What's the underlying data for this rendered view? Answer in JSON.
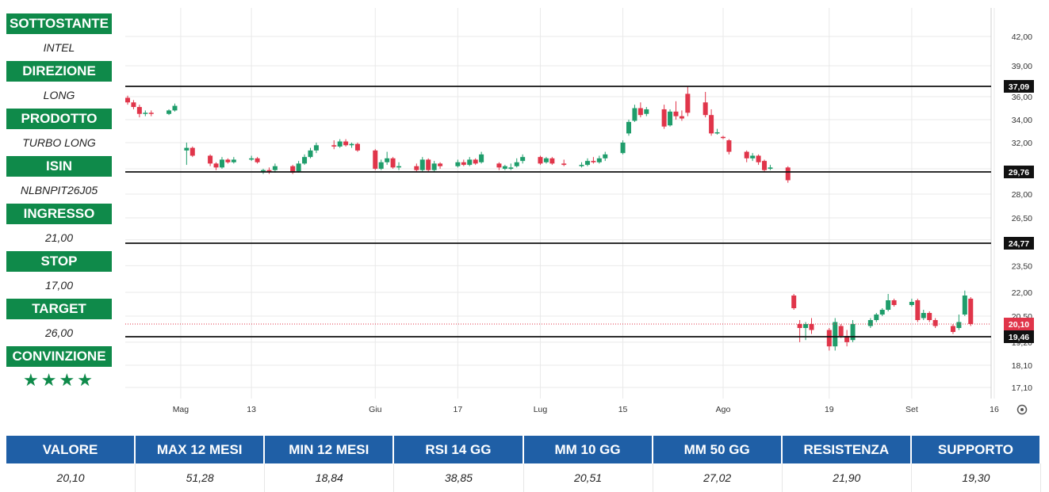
{
  "sidebar": {
    "items": [
      {
        "label": "SOTTOSTANTE",
        "value": "INTEL"
      },
      {
        "label": "DIREZIONE",
        "value": "LONG"
      },
      {
        "label": "PRODOTTO",
        "value": "TURBO LONG"
      },
      {
        "label": "ISIN",
        "value": "NLBNPIT26J05"
      },
      {
        "label": "INGRESSO",
        "value": "21,00"
      },
      {
        "label": "STOP",
        "value": "17,00"
      },
      {
        "label": "TARGET",
        "value": "26,00"
      }
    ],
    "conviction_label": "CONVINZIONE",
    "conviction_stars": "★★★★"
  },
  "chart_data": {
    "type": "candlestick",
    "y_ticks": [
      {
        "label": "42,00",
        "value": 42.0
      },
      {
        "label": "39,00",
        "value": 39.0
      },
      {
        "label": "36,00",
        "value": 36.0
      },
      {
        "label": "34,00",
        "value": 34.0
      },
      {
        "label": "32,00",
        "value": 32.0
      },
      {
        "label": "30,00",
        "value": 30.0
      },
      {
        "label": "28,00",
        "value": 28.0
      },
      {
        "label": "26,50",
        "value": 26.5
      },
      {
        "label": "25,00",
        "value": 25.0
      },
      {
        "label": "23,50",
        "value": 23.5
      },
      {
        "label": "22,00",
        "value": 22.0
      },
      {
        "label": "20,50",
        "value": 20.5
      },
      {
        "label": "19,20",
        "value": 19.2
      },
      {
        "label": "18,10",
        "value": 18.1
      },
      {
        "label": "17,10",
        "value": 17.1
      }
    ],
    "x_ticks": [
      {
        "label": "Mag",
        "date": "2024-05-01"
      },
      {
        "label": "13",
        "date": "2024-05-13"
      },
      {
        "label": "Giu",
        "date": "2024-06-03"
      },
      {
        "label": "17",
        "date": "2024-06-17"
      },
      {
        "label": "Lug",
        "date": "2024-07-01"
      },
      {
        "label": "15",
        "date": "2024-07-15"
      },
      {
        "label": "Ago",
        "date": "2024-08-01"
      },
      {
        "label": "19",
        "date": "2024-08-19"
      },
      {
        "label": "Set",
        "date": "2024-09-02"
      },
      {
        "label": "16",
        "date": "2024-09-16"
      }
    ],
    "levels": [
      {
        "label": "37,09",
        "value": 37.09
      },
      {
        "label": "29,76",
        "value": 29.76
      },
      {
        "label": "24,77",
        "value": 24.77
      },
      {
        "label": "19,46",
        "value": 19.46
      }
    ],
    "last_price": {
      "label": "20,10",
      "value": 20.1
    },
    "candles": [
      {
        "date": "2024-04-22",
        "o": 35.9,
        "h": 36.1,
        "l": 35.3,
        "c": 35.5
      },
      {
        "date": "2024-04-23",
        "o": 35.5,
        "h": 35.7,
        "l": 34.9,
        "c": 35.1
      },
      {
        "date": "2024-04-24",
        "o": 35.1,
        "h": 35.3,
        "l": 34.2,
        "c": 34.5
      },
      {
        "date": "2024-04-25",
        "o": 34.5,
        "h": 34.8,
        "l": 34.3,
        "c": 34.6
      },
      {
        "date": "2024-04-26",
        "o": 34.6,
        "h": 34.8,
        "l": 34.3,
        "c": 34.5
      },
      {
        "date": "2024-04-29",
        "o": 34.5,
        "h": 34.9,
        "l": 34.4,
        "c": 34.8
      },
      {
        "date": "2024-04-30",
        "o": 34.8,
        "h": 35.4,
        "l": 34.7,
        "c": 35.2
      },
      {
        "date": "2024-05-02",
        "o": 31.4,
        "h": 32.0,
        "l": 30.3,
        "c": 31.6
      },
      {
        "date": "2024-05-03",
        "o": 31.6,
        "h": 31.7,
        "l": 30.9,
        "c": 31.0
      },
      {
        "date": "2024-05-06",
        "o": 31.0,
        "h": 31.1,
        "l": 30.2,
        "c": 30.4
      },
      {
        "date": "2024-05-07",
        "o": 30.4,
        "h": 30.5,
        "l": 29.9,
        "c": 30.1
      },
      {
        "date": "2024-05-08",
        "o": 30.1,
        "h": 30.9,
        "l": 30.0,
        "c": 30.7
      },
      {
        "date": "2024-05-09",
        "o": 30.7,
        "h": 30.8,
        "l": 30.4,
        "c": 30.5
      },
      {
        "date": "2024-05-10",
        "o": 30.5,
        "h": 30.9,
        "l": 30.4,
        "c": 30.7
      },
      {
        "date": "2024-05-13",
        "o": 30.7,
        "h": 31.0,
        "l": 30.6,
        "c": 30.8
      },
      {
        "date": "2024-05-14",
        "o": 30.8,
        "h": 30.9,
        "l": 30.4,
        "c": 30.5
      },
      {
        "date": "2024-05-15",
        "o": 29.8,
        "h": 30.0,
        "l": 29.6,
        "c": 29.9
      },
      {
        "date": "2024-05-16",
        "o": 29.9,
        "h": 30.1,
        "l": 29.6,
        "c": 29.8
      },
      {
        "date": "2024-05-17",
        "o": 29.9,
        "h": 30.4,
        "l": 29.7,
        "c": 30.2
      },
      {
        "date": "2024-05-20",
        "o": 30.2,
        "h": 30.3,
        "l": 29.6,
        "c": 29.7
      },
      {
        "date": "2024-05-21",
        "o": 29.8,
        "h": 30.6,
        "l": 29.7,
        "c": 30.4
      },
      {
        "date": "2024-05-22",
        "o": 30.4,
        "h": 31.1,
        "l": 30.3,
        "c": 30.9
      },
      {
        "date": "2024-05-23",
        "o": 30.9,
        "h": 31.6,
        "l": 30.8,
        "c": 31.4
      },
      {
        "date": "2024-05-24",
        "o": 31.4,
        "h": 32.0,
        "l": 31.2,
        "c": 31.8
      },
      {
        "date": "2024-05-27",
        "o": 31.8,
        "h": 32.2,
        "l": 31.5,
        "c": 31.7
      },
      {
        "date": "2024-05-28",
        "o": 31.7,
        "h": 32.3,
        "l": 31.6,
        "c": 32.1
      },
      {
        "date": "2024-05-29",
        "o": 32.1,
        "h": 32.3,
        "l": 31.7,
        "c": 31.8
      },
      {
        "date": "2024-05-30",
        "o": 31.8,
        "h": 32.0,
        "l": 31.6,
        "c": 31.9
      },
      {
        "date": "2024-05-31",
        "o": 31.9,
        "h": 32.0,
        "l": 31.3,
        "c": 31.4
      },
      {
        "date": "2024-06-03",
        "o": 31.4,
        "h": 31.5,
        "l": 29.9,
        "c": 30.0
      },
      {
        "date": "2024-06-04",
        "o": 30.0,
        "h": 30.7,
        "l": 29.9,
        "c": 30.5
      },
      {
        "date": "2024-06-05",
        "o": 30.5,
        "h": 31.3,
        "l": 30.3,
        "c": 30.8
      },
      {
        "date": "2024-06-06",
        "o": 30.8,
        "h": 30.9,
        "l": 30.0,
        "c": 30.1
      },
      {
        "date": "2024-06-07",
        "o": 30.1,
        "h": 30.5,
        "l": 29.9,
        "c": 30.2
      },
      {
        "date": "2024-06-10",
        "o": 30.2,
        "h": 30.4,
        "l": 29.8,
        "c": 29.9
      },
      {
        "date": "2024-06-11",
        "o": 29.9,
        "h": 30.9,
        "l": 29.8,
        "c": 30.7
      },
      {
        "date": "2024-06-12",
        "o": 30.7,
        "h": 30.8,
        "l": 29.8,
        "c": 29.9
      },
      {
        "date": "2024-06-13",
        "o": 29.9,
        "h": 30.6,
        "l": 29.8,
        "c": 30.4
      },
      {
        "date": "2024-06-14",
        "o": 30.4,
        "h": 30.5,
        "l": 30.0,
        "c": 30.2
      },
      {
        "date": "2024-06-17",
        "o": 30.2,
        "h": 30.7,
        "l": 30.1,
        "c": 30.5
      },
      {
        "date": "2024-06-18",
        "o": 30.5,
        "h": 30.7,
        "l": 30.2,
        "c": 30.3
      },
      {
        "date": "2024-06-19",
        "o": 30.3,
        "h": 30.9,
        "l": 30.2,
        "c": 30.7
      },
      {
        "date": "2024-06-20",
        "o": 30.7,
        "h": 30.8,
        "l": 30.3,
        "c": 30.4
      },
      {
        "date": "2024-06-21",
        "o": 30.5,
        "h": 31.3,
        "l": 30.4,
        "c": 31.1
      },
      {
        "date": "2024-06-24",
        "o": 30.4,
        "h": 30.5,
        "l": 29.9,
        "c": 30.1
      },
      {
        "date": "2024-06-25",
        "o": 30.0,
        "h": 30.3,
        "l": 29.9,
        "c": 30.2
      },
      {
        "date": "2024-06-26",
        "o": 30.0,
        "h": 30.4,
        "l": 29.9,
        "c": 30.1
      },
      {
        "date": "2024-06-27",
        "o": 30.2,
        "h": 30.8,
        "l": 30.1,
        "c": 30.5
      },
      {
        "date": "2024-06-28",
        "o": 30.6,
        "h": 31.1,
        "l": 30.4,
        "c": 30.9
      },
      {
        "date": "2024-07-01",
        "o": 30.9,
        "h": 31.0,
        "l": 30.3,
        "c": 30.4
      },
      {
        "date": "2024-07-02",
        "o": 30.5,
        "h": 30.9,
        "l": 30.4,
        "c": 30.8
      },
      {
        "date": "2024-07-03",
        "o": 30.8,
        "h": 30.9,
        "l": 30.3,
        "c": 30.4
      },
      {
        "date": "2024-07-05",
        "o": 30.4,
        "h": 30.7,
        "l": 30.2,
        "c": 30.3
      },
      {
        "date": "2024-07-08",
        "o": 30.2,
        "h": 30.5,
        "l": 30.1,
        "c": 30.3
      },
      {
        "date": "2024-07-09",
        "o": 30.3,
        "h": 30.8,
        "l": 30.2,
        "c": 30.6
      },
      {
        "date": "2024-07-10",
        "o": 30.6,
        "h": 30.9,
        "l": 30.4,
        "c": 30.5
      },
      {
        "date": "2024-07-11",
        "o": 30.5,
        "h": 31.0,
        "l": 30.4,
        "c": 30.8
      },
      {
        "date": "2024-07-12",
        "o": 30.8,
        "h": 31.3,
        "l": 30.6,
        "c": 31.1
      },
      {
        "date": "2024-07-15",
        "o": 31.2,
        "h": 32.2,
        "l": 31.1,
        "c": 32.0
      },
      {
        "date": "2024-07-16",
        "o": 32.8,
        "h": 34.0,
        "l": 32.6,
        "c": 33.8
      },
      {
        "date": "2024-07-17",
        "o": 33.9,
        "h": 35.3,
        "l": 33.8,
        "c": 35.0
      },
      {
        "date": "2024-07-18",
        "o": 35.0,
        "h": 35.5,
        "l": 34.2,
        "c": 34.4
      },
      {
        "date": "2024-07-19",
        "o": 34.5,
        "h": 35.1,
        "l": 34.3,
        "c": 34.9
      },
      {
        "date": "2024-07-22",
        "o": 34.9,
        "h": 35.3,
        "l": 33.2,
        "c": 33.4
      },
      {
        "date": "2024-07-23",
        "o": 33.5,
        "h": 34.9,
        "l": 33.4,
        "c": 34.7
      },
      {
        "date": "2024-07-24",
        "o": 34.7,
        "h": 35.6,
        "l": 34.0,
        "c": 34.3
      },
      {
        "date": "2024-07-25",
        "o": 34.3,
        "h": 34.8,
        "l": 33.9,
        "c": 34.1
      },
      {
        "date": "2024-07-26",
        "o": 36.3,
        "h": 37.1,
        "l": 34.3,
        "c": 34.6
      },
      {
        "date": "2024-07-29",
        "o": 35.5,
        "h": 36.5,
        "l": 34.2,
        "c": 34.4
      },
      {
        "date": "2024-07-30",
        "o": 34.4,
        "h": 34.9,
        "l": 32.6,
        "c": 32.8
      },
      {
        "date": "2024-07-31",
        "o": 32.9,
        "h": 33.2,
        "l": 32.7,
        "c": 32.9
      },
      {
        "date": "2024-08-01",
        "o": 32.5,
        "h": 32.6,
        "l": 32.3,
        "c": 32.4
      },
      {
        "date": "2024-08-02",
        "o": 32.2,
        "h": 32.3,
        "l": 31.1,
        "c": 31.3
      },
      {
        "date": "2024-08-05",
        "o": 31.3,
        "h": 31.4,
        "l": 30.5,
        "c": 30.8
      },
      {
        "date": "2024-08-06",
        "o": 30.8,
        "h": 31.2,
        "l": 30.6,
        "c": 31.0
      },
      {
        "date": "2024-08-07",
        "o": 31.0,
        "h": 31.1,
        "l": 30.3,
        "c": 30.5
      },
      {
        "date": "2024-08-08",
        "o": 30.6,
        "h": 30.7,
        "l": 29.8,
        "c": 29.9
      },
      {
        "date": "2024-08-09",
        "o": 30.0,
        "h": 30.3,
        "l": 29.9,
        "c": 30.1
      },
      {
        "date": "2024-08-12",
        "o": 30.1,
        "h": 30.2,
        "l": 28.9,
        "c": 29.1
      },
      {
        "date": "2024-08-13",
        "o": 21.8,
        "h": 21.9,
        "l": 20.9,
        "c": 21.0
      },
      {
        "date": "2024-08-14",
        "o": 20.1,
        "h": 20.3,
        "l": 19.2,
        "c": 19.9
      },
      {
        "date": "2024-08-15",
        "o": 19.9,
        "h": 20.2,
        "l": 19.3,
        "c": 20.1
      },
      {
        "date": "2024-08-16",
        "o": 20.1,
        "h": 20.4,
        "l": 19.6,
        "c": 19.8
      },
      {
        "date": "2024-08-19",
        "o": 19.8,
        "h": 19.9,
        "l": 18.8,
        "c": 19.0
      },
      {
        "date": "2024-08-20",
        "o": 19.0,
        "h": 20.4,
        "l": 18.8,
        "c": 20.2
      },
      {
        "date": "2024-08-21",
        "o": 20.0,
        "h": 20.1,
        "l": 19.4,
        "c": 19.5
      },
      {
        "date": "2024-08-22",
        "o": 19.5,
        "h": 19.8,
        "l": 19.0,
        "c": 19.2
      },
      {
        "date": "2024-08-23",
        "o": 19.3,
        "h": 20.3,
        "l": 19.2,
        "c": 20.1
      },
      {
        "date": "2024-08-26",
        "o": 20.0,
        "h": 20.4,
        "l": 19.9,
        "c": 20.3
      },
      {
        "date": "2024-08-27",
        "o": 20.3,
        "h": 20.7,
        "l": 20.2,
        "c": 20.6
      },
      {
        "date": "2024-08-28",
        "o": 20.6,
        "h": 21.0,
        "l": 20.5,
        "c": 20.9
      },
      {
        "date": "2024-08-29",
        "o": 20.9,
        "h": 21.9,
        "l": 20.8,
        "c": 21.5
      },
      {
        "date": "2024-08-30",
        "o": 21.5,
        "h": 21.6,
        "l": 21.1,
        "c": 21.2
      },
      {
        "date": "2024-09-02",
        "o": 21.2,
        "h": 21.6,
        "l": 21.1,
        "c": 21.4
      },
      {
        "date": "2024-09-03",
        "o": 21.5,
        "h": 21.6,
        "l": 20.2,
        "c": 20.3
      },
      {
        "date": "2024-09-04",
        "o": 20.4,
        "h": 20.9,
        "l": 20.3,
        "c": 20.7
      },
      {
        "date": "2024-09-05",
        "o": 20.7,
        "h": 20.8,
        "l": 20.2,
        "c": 20.3
      },
      {
        "date": "2024-09-06",
        "o": 20.3,
        "h": 20.4,
        "l": 19.9,
        "c": 20.0
      },
      {
        "date": "2024-09-09",
        "o": 20.0,
        "h": 20.1,
        "l": 19.6,
        "c": 19.7
      },
      {
        "date": "2024-09-10",
        "o": 19.9,
        "h": 20.6,
        "l": 19.8,
        "c": 20.2
      },
      {
        "date": "2024-09-11",
        "o": 20.6,
        "h": 22.1,
        "l": 20.5,
        "c": 21.8
      },
      {
        "date": "2024-09-12",
        "o": 21.6,
        "h": 21.7,
        "l": 20.0,
        "c": 20.1
      }
    ],
    "colors": {
      "up": "#1f9d6b",
      "down": "#e0354a",
      "grid": "#e9e9e9",
      "level": "#111111",
      "last_price_line": "#e0354a"
    }
  },
  "bottom": {
    "headers": [
      "VALORE",
      "MAX 12 MESI",
      "MIN 12 MESI",
      "RSI 14 GG",
      "MM 10 GG",
      "MM 50 GG",
      "RESISTENZA",
      "SUPPORTO"
    ],
    "values": [
      "20,10",
      "51,28",
      "18,84",
      "38,85",
      "20,51",
      "27,02",
      "21,90",
      "19,30"
    ]
  },
  "colors": {
    "sidebar_header": "#0f8a4a",
    "table_header": "#1f5fa6"
  }
}
